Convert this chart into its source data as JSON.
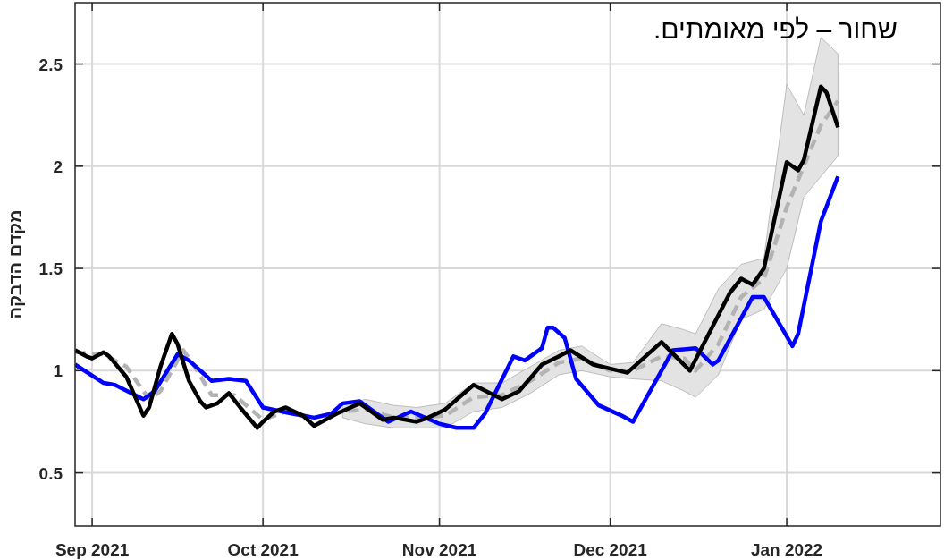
{
  "chart_data": {
    "type": "line",
    "ylabel": "מקדם הדבקה",
    "annotations": [
      "שחור – לפי מאומתים."
    ],
    "xlim": [
      "2021-08-29",
      "2022-01-28"
    ],
    "xticks": [
      {
        "value": "2021-09-01",
        "label": "Sep 2021"
      },
      {
        "value": "2021-10-01",
        "label": "Oct 2021"
      },
      {
        "value": "2021-11-01",
        "label": "Nov 2021"
      },
      {
        "value": "2021-12-01",
        "label": "Dec 2021"
      },
      {
        "value": "2022-01-01",
        "label": "Jan 2022"
      }
    ],
    "ylim": [
      0.24,
      2.8
    ],
    "yticks": [
      0.5,
      1,
      1.5,
      2,
      2.5
    ],
    "grid": true,
    "series": [
      {
        "color": "#b3b3b3",
        "line_style": "dashed",
        "x": [
          "2021-08-29",
          "2021-09-03",
          "2021-09-07",
          "2021-09-11",
          "2021-09-13",
          "2021-09-17",
          "2021-09-19",
          "2021-09-22",
          "2021-09-26",
          "2021-10-01",
          "2021-10-05",
          "2021-10-10",
          "2021-10-15",
          "2021-10-19",
          "2021-10-24",
          "2021-10-28",
          "2021-11-02",
          "2021-11-07",
          "2021-11-12",
          "2021-11-17",
          "2021-11-22",
          "2021-11-26",
          "2021-12-01",
          "2021-12-05",
          "2021-12-10",
          "2021-12-14",
          "2021-12-16",
          "2021-12-20",
          "2021-12-24",
          "2021-12-28",
          "2022-01-01",
          "2022-01-04",
          "2022-01-07",
          "2022-01-10"
        ],
        "values": [
          1.09,
          1.08,
          1.02,
          0.86,
          0.9,
          1.1,
          1.02,
          0.88,
          0.88,
          0.76,
          0.8,
          0.77,
          0.8,
          0.81,
          0.77,
          0.77,
          0.78,
          0.87,
          0.88,
          0.95,
          1.04,
          1.06,
          1.0,
          1.0,
          1.07,
          1.06,
          1.0,
          1.13,
          1.36,
          1.45,
          1.8,
          2.0,
          2.2,
          2.32
        ],
        "lower": [
          null,
          null,
          null,
          null,
          null,
          null,
          null,
          null,
          null,
          null,
          null,
          null,
          0.77,
          0.74,
          0.72,
          0.72,
          0.72,
          0.8,
          0.82,
          0.89,
          0.98,
          1.0,
          0.97,
          0.96,
          0.95,
          0.9,
          0.87,
          0.98,
          1.25,
          1.3,
          1.5,
          1.85,
          1.95,
          2.05
        ],
        "upper": [
          null,
          null,
          null,
          null,
          null,
          null,
          null,
          null,
          null,
          null,
          null,
          null,
          0.83,
          0.86,
          0.83,
          0.82,
          0.84,
          0.94,
          0.94,
          1.02,
          1.1,
          1.12,
          1.03,
          1.04,
          1.23,
          1.2,
          1.18,
          1.4,
          1.52,
          1.55,
          2.4,
          2.25,
          2.63,
          2.55
        ]
      },
      {
        "color": "#0000ff",
        "line_style": "solid",
        "x": [
          "2021-08-29",
          "2021-09-03",
          "2021-09-05",
          "2021-09-10",
          "2021-09-12",
          "2021-09-16",
          "2021-09-18",
          "2021-09-22",
          "2021-09-25",
          "2021-09-28",
          "2021-10-01",
          "2021-10-06",
          "2021-10-10",
          "2021-10-13",
          "2021-10-15",
          "2021-10-18",
          "2021-10-23",
          "2021-10-27",
          "2021-11-01",
          "2021-11-04",
          "2021-11-07",
          "2021-11-09",
          "2021-11-14",
          "2021-11-16",
          "2021-11-19",
          "2021-11-20",
          "2021-11-21",
          "2021-11-23",
          "2021-11-25",
          "2021-11-29",
          "2021-12-03",
          "2021-12-05",
          "2021-12-10",
          "2021-12-12",
          "2021-12-16",
          "2021-12-19",
          "2021-12-20",
          "2021-12-26",
          "2021-12-28",
          "2022-01-02",
          "2022-01-03",
          "2022-01-07",
          "2022-01-10"
        ],
        "values": [
          1.03,
          0.94,
          0.93,
          0.86,
          0.9,
          1.08,
          1.05,
          0.95,
          0.96,
          0.95,
          0.82,
          0.79,
          0.77,
          0.79,
          0.84,
          0.85,
          0.75,
          0.8,
          0.74,
          0.72,
          0.72,
          0.79,
          1.07,
          1.05,
          1.11,
          1.21,
          1.21,
          1.16,
          0.96,
          0.83,
          0.78,
          0.75,
          1.0,
          1.1,
          1.11,
          1.03,
          1.05,
          1.36,
          1.36,
          1.12,
          1.18,
          1.73,
          1.95
        ]
      },
      {
        "color": "#000000",
        "line_style": "solid",
        "x": [
          "2021-08-29",
          "2021-08-31",
          "2021-09-01",
          "2021-09-03",
          "2021-09-04",
          "2021-09-07",
          "2021-09-10",
          "2021-09-11",
          "2021-09-13",
          "2021-09-15",
          "2021-09-16",
          "2021-09-18",
          "2021-09-20",
          "2021-09-21",
          "2021-09-23",
          "2021-09-25",
          "2021-09-27",
          "2021-09-30",
          "2021-10-01",
          "2021-10-03",
          "2021-10-05",
          "2021-10-08",
          "2021-10-10",
          "2021-10-14",
          "2021-10-18",
          "2021-10-20",
          "2021-10-22",
          "2021-10-24",
          "2021-10-28",
          "2021-10-30",
          "2021-11-02",
          "2021-11-07",
          "2021-11-12",
          "2021-11-15",
          "2021-11-19",
          "2021-11-22",
          "2021-11-24",
          "2021-11-28",
          "2021-12-04",
          "2021-12-10",
          "2021-12-15",
          "2021-12-22",
          "2021-12-24",
          "2021-12-26",
          "2021-12-28",
          "2022-01-01",
          "2022-01-03",
          "2022-01-04",
          "2022-01-07",
          "2022-01-08",
          "2022-01-10"
        ],
        "values": [
          1.1,
          1.07,
          1.06,
          1.09,
          1.07,
          0.97,
          0.78,
          0.82,
          1.02,
          1.18,
          1.13,
          0.95,
          0.85,
          0.82,
          0.84,
          0.89,
          0.82,
          0.72,
          0.75,
          0.8,
          0.82,
          0.78,
          0.73,
          0.79,
          0.84,
          0.8,
          0.76,
          0.77,
          0.75,
          0.77,
          0.81,
          0.93,
          0.86,
          0.9,
          1.03,
          1.07,
          1.1,
          1.03,
          0.99,
          1.14,
          1.0,
          1.38,
          1.45,
          1.42,
          1.5,
          2.02,
          1.98,
          2.03,
          2.39,
          2.36,
          2.19
        ]
      }
    ]
  }
}
